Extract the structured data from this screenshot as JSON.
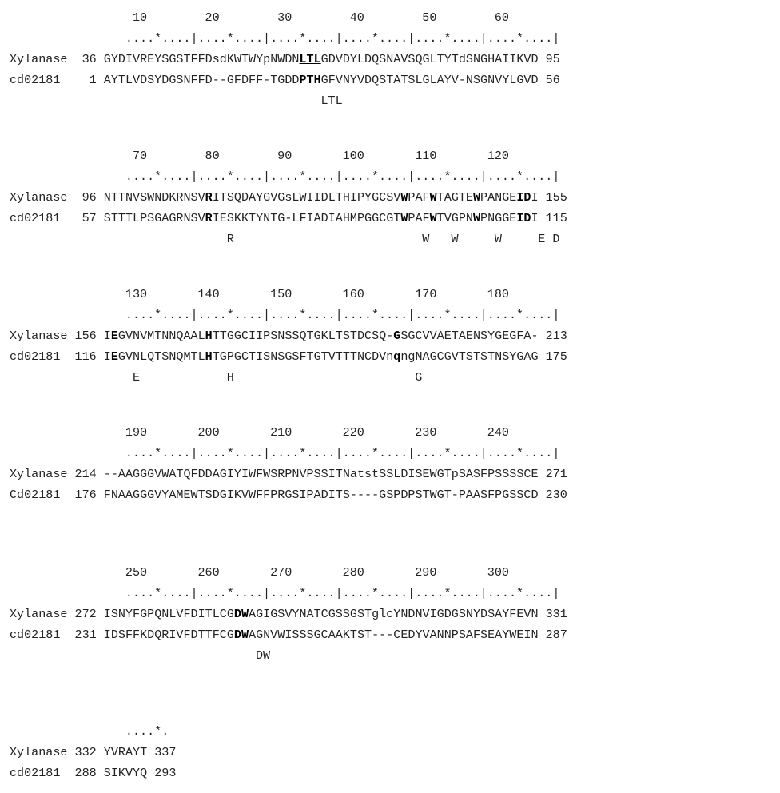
{
  "alignment": {
    "blocks": [
      {
        "ruler_numbers": "                 10        20        30        40        50        60",
        "ruler_ticks": "                ....*....|....*....|....*....|....*....|....*....|....*....|",
        "rows": [
          {
            "label": "Xylanase",
            "start": "36",
            "seq": "GYDIVREYSGSTFFDsdKWTWYpNWDNLTLGDVDYLDQSNAVSQGLTYTdSNGHAIIKVD",
            "end": "95",
            "bold": [
              27,
              28,
              29
            ],
            "underline": [
              27,
              28,
              29
            ]
          },
          {
            "label": "cd02181",
            "start": "1",
            "seq": "AYTLVDSYDGSNFFD--GFDFF-TGDDPTHGFVNYVDQSTATSLGLAYV-NSGNVYLGVD",
            "end": "56",
            "bold": [
              27,
              28,
              29
            ]
          }
        ],
        "conserved": "                                           LTL"
      },
      {
        "ruler_numbers": "                 70        80        90       100       110       120",
        "ruler_ticks": "                ....*....|....*....|....*....|....*....|....*....|....*....|",
        "rows": [
          {
            "label": "Xylanase",
            "start": "96",
            "seq": "NTTNVSWNDKRNSVRITSQDAYGVGsLWIIDLTHIPYGCSVWPAFWTAGTEWPANGEIDI",
            "end": "155",
            "bold": [
              14,
              41,
              45,
              51,
              57,
              58
            ]
          },
          {
            "label": "cd02181",
            "start": "57",
            "seq": "STTTLPSGAGRNSVRIESKKTYNTG-LFIADIAHMPGGCGTWPAFWTVGPNWPNGGEIDI",
            "end": "115",
            "bold": [
              14,
              41,
              45,
              51,
              57,
              58
            ]
          }
        ],
        "conserved": "                              R                          W   W     W     E D"
      },
      {
        "ruler_numbers": "                130       140       150       160       170       180",
        "ruler_ticks": "                ....*....|....*....|....*....|....*....|....*....|....*....|",
        "rows": [
          {
            "label": "Xylanase",
            "start": "156",
            "seq": "IEGVNVMTNNQAALHTTGGCIIPSNSSQTGKLTSTDCSQ-GSGCVVAETAENSYGEGFA-",
            "end": "213",
            "bold": [
              1,
              14,
              40
            ]
          },
          {
            "label": "cd02181",
            "start": "116",
            "seq": "IEGVNLQTSNQMTLHTGPGCTISNSGSFTGTVTTTNCDVnqngNAGCGVTSTSTNSYGAG",
            "end": "175",
            "bold": [
              1,
              14,
              40
            ]
          }
        ],
        "conserved": "                 E            H                         G"
      },
      {
        "ruler_numbers": "                190       200       210       220       230       240",
        "ruler_ticks": "                ....*....|....*....|....*....|....*....|....*....|....*....|",
        "rows": [
          {
            "label": "Xylanase",
            "start": "214",
            "seq": "--AAGGGVWATQFDDAGIYIWFWSRPNVPSSITNatstSSLDISEWGTpSASFPSSSSCE",
            "end": "271",
            "bold": []
          },
          {
            "label": "Cd02181",
            "start": "176",
            "seq": "FNAAGGGVYAMEWTSDGIKVWFFPRGSIPADITS----GSPDPSTWGT-PAASFPGSSCD",
            "end": "230",
            "bold": []
          }
        ],
        "conserved": ""
      },
      {
        "ruler_numbers": "                250       260       270       280       290       300",
        "ruler_ticks": "                ....*....|....*....|....*....|....*....|....*....|....*....|",
        "rows": [
          {
            "label": "Xylanase",
            "start": "272",
            "seq": "ISNYFGPQNLVFDITLCGDWAGIGSVYNATCGSSGSTglcYNDNVIGDGSNYDSAYFEVN",
            "end": "331",
            "bold": [
              18,
              19
            ]
          },
          {
            "label": "cd02181",
            "start": "231",
            "seq": "IDSFFKDQRIVFDTTFCGDWAGNVWISSSGCAAKTST---CEDYVANNPSAFSEAYWEIN",
            "end": "287",
            "bold": [
              18,
              19
            ]
          }
        ],
        "conserved": "                                  DW"
      },
      {
        "ruler_numbers": "",
        "ruler_ticks": "                ....*.",
        "rows": [
          {
            "label": "Xylanase",
            "start": "332",
            "seq": "YVRAYT",
            "end": "337",
            "bold": []
          },
          {
            "label": "cd02181",
            "start": "288",
            "seq": "SIKVYQ",
            "end": "293",
            "bold": []
          }
        ],
        "conserved": ""
      }
    ]
  }
}
